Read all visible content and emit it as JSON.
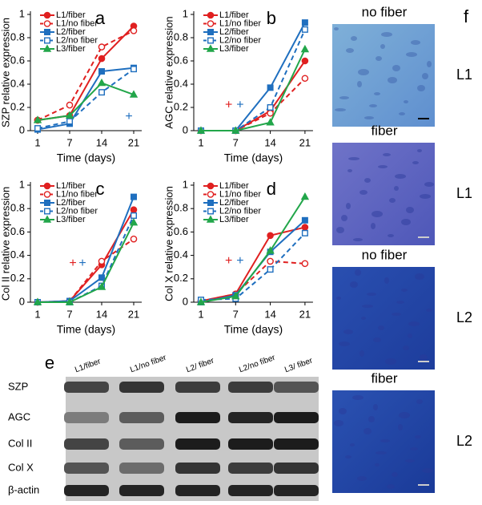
{
  "chart_data": [
    {
      "type": "line",
      "panel_label": "a",
      "ylabel": "SZP relative expression",
      "xlabel": "Time (days)",
      "categories": [
        "1",
        "7",
        "14",
        "21"
      ],
      "ylim": [
        0,
        1
      ],
      "yticks": [
        0,
        0.2,
        0.4,
        0.6,
        0.8,
        1
      ],
      "series": [
        {
          "name": "L1/fiber",
          "color": "#e02020",
          "marker": "circle",
          "filled": true,
          "dashed": false,
          "values": [
            0.09,
            0.13,
            0.62,
            0.9
          ]
        },
        {
          "name": "L1/no fiber",
          "color": "#e02020",
          "marker": "circle",
          "filled": false,
          "dashed": true,
          "values": [
            0.09,
            0.22,
            0.72,
            0.86
          ]
        },
        {
          "name": "L2/fiber",
          "color": "#1f6fbf",
          "marker": "square",
          "filled": true,
          "dashed": false,
          "values": [
            0.01,
            0.06,
            0.51,
            0.54
          ]
        },
        {
          "name": "L2/no fiber",
          "color": "#1f6fbf",
          "marker": "square",
          "filled": false,
          "dashed": true,
          "values": [
            0.02,
            0.08,
            0.33,
            0.53
          ]
        },
        {
          "name": "L3/fiber",
          "color": "#22a64a",
          "marker": "triangle",
          "filled": true,
          "dashed": false,
          "values": [
            0.09,
            0.13,
            0.41,
            0.31
          ]
        }
      ],
      "annotations": [
        {
          "text": "+",
          "x": 2.85,
          "y": 0.12,
          "color": "#1f6fbf"
        }
      ]
    },
    {
      "type": "line",
      "panel_label": "b",
      "ylabel": "AGC relative expression",
      "xlabel": "Time (days)",
      "categories": [
        "1",
        "7",
        "14",
        "21"
      ],
      "ylim": [
        0,
        1
      ],
      "yticks": [
        0,
        0.2,
        0.4,
        0.6,
        0.8,
        1
      ],
      "series": [
        {
          "name": "L1/fiber",
          "color": "#e02020",
          "marker": "circle",
          "filled": true,
          "dashed": false,
          "values": [
            0,
            0,
            0.17,
            0.6
          ]
        },
        {
          "name": "L1/no fiber",
          "color": "#e02020",
          "marker": "circle",
          "filled": false,
          "dashed": true,
          "values": [
            0,
            0,
            0.15,
            0.45
          ]
        },
        {
          "name": "L2/fiber",
          "color": "#1f6fbf",
          "marker": "square",
          "filled": true,
          "dashed": false,
          "values": [
            0,
            0,
            0.37,
            0.93
          ]
        },
        {
          "name": "L2/no fiber",
          "color": "#1f6fbf",
          "marker": "square",
          "filled": false,
          "dashed": true,
          "values": [
            0,
            0,
            0.2,
            0.87
          ]
        },
        {
          "name": "L3/fiber",
          "color": "#22a64a",
          "marker": "triangle",
          "filled": true,
          "dashed": false,
          "values": [
            0,
            0,
            0.07,
            0.7
          ]
        }
      ],
      "annotations": [
        {
          "text": "+",
          "x": 0.8,
          "y": 0.22,
          "color": "#e02020"
        },
        {
          "text": "+",
          "x": 1.13,
          "y": 0.22,
          "color": "#1f6fbf"
        }
      ]
    },
    {
      "type": "line",
      "panel_label": "c",
      "ylabel": "Col II relative expression",
      "xlabel": "Time (days)",
      "categories": [
        "1",
        "7",
        "14",
        "21"
      ],
      "ylim": [
        0,
        1
      ],
      "yticks": [
        0,
        0.2,
        0.4,
        0.6,
        0.8,
        1
      ],
      "series": [
        {
          "name": "L1/fiber",
          "color": "#e02020",
          "marker": "circle",
          "filled": true,
          "dashed": false,
          "values": [
            0,
            0.01,
            0.32,
            0.79
          ]
        },
        {
          "name": "L1/no fiber",
          "color": "#e02020",
          "marker": "circle",
          "filled": false,
          "dashed": true,
          "values": [
            0,
            0.01,
            0.35,
            0.54
          ]
        },
        {
          "name": "L2/fiber",
          "color": "#1f6fbf",
          "marker": "square",
          "filled": true,
          "dashed": false,
          "values": [
            0,
            0.01,
            0.21,
            0.9
          ]
        },
        {
          "name": "L2/no fiber",
          "color": "#1f6fbf",
          "marker": "square",
          "filled": false,
          "dashed": true,
          "values": [
            0,
            0,
            0.14,
            0.74
          ]
        },
        {
          "name": "L3/fiber",
          "color": "#22a64a",
          "marker": "triangle",
          "filled": true,
          "dashed": false,
          "values": [
            0,
            0,
            0.13,
            0.68
          ]
        }
      ],
      "annotations": [
        {
          "text": "+",
          "x": 1.1,
          "y": 0.33,
          "color": "#e02020"
        },
        {
          "text": "+",
          "x": 1.4,
          "y": 0.33,
          "color": "#1f6fbf"
        }
      ]
    },
    {
      "type": "line",
      "panel_label": "d",
      "ylabel": "Col X relative expression",
      "xlabel": "Time (days)",
      "categories": [
        "1",
        "7",
        "14",
        "21"
      ],
      "ylim": [
        0,
        1
      ],
      "yticks": [
        0,
        0.2,
        0.4,
        0.6,
        0.8,
        1
      ],
      "series": [
        {
          "name": "L1/fiber",
          "color": "#e02020",
          "marker": "circle",
          "filled": true,
          "dashed": false,
          "values": [
            0.01,
            0.07,
            0.57,
            0.64
          ]
        },
        {
          "name": "L1/no fiber",
          "color": "#e02020",
          "marker": "circle",
          "filled": false,
          "dashed": true,
          "values": [
            0.01,
            0.07,
            0.35,
            0.33
          ]
        },
        {
          "name": "L2/fiber",
          "color": "#1f6fbf",
          "marker": "square",
          "filled": true,
          "dashed": false,
          "values": [
            0,
            0.06,
            0.43,
            0.7
          ]
        },
        {
          "name": "L2/no fiber",
          "color": "#1f6fbf",
          "marker": "square",
          "filled": false,
          "dashed": true,
          "values": [
            0.02,
            0.03,
            0.28,
            0.59
          ]
        },
        {
          "name": "L3/fiber",
          "color": "#22a64a",
          "marker": "triangle",
          "filled": true,
          "dashed": false,
          "values": [
            0,
            0.05,
            0.44,
            0.9
          ]
        }
      ],
      "annotations": [
        {
          "text": "+",
          "x": 0.8,
          "y": 0.35,
          "color": "#e02020"
        },
        {
          "text": "+",
          "x": 1.13,
          "y": 0.35,
          "color": "#1f6fbf"
        }
      ]
    }
  ],
  "blot": {
    "label": "e",
    "columns": [
      "L1/fiber",
      "L1/no fiber",
      "L2/ fiber",
      "L2/no fiber",
      "L3/ fiber"
    ],
    "rows": [
      "SZP",
      "AGC",
      "Col II",
      "Col X",
      "β-actin"
    ]
  },
  "images": {
    "label": "f",
    "panels": [
      {
        "title": "no fiber",
        "side": "L1"
      },
      {
        "title": "fiber",
        "side": "L1"
      },
      {
        "title": "no fiber",
        "side": "L2"
      },
      {
        "title": "fiber",
        "side": "L2"
      }
    ]
  }
}
